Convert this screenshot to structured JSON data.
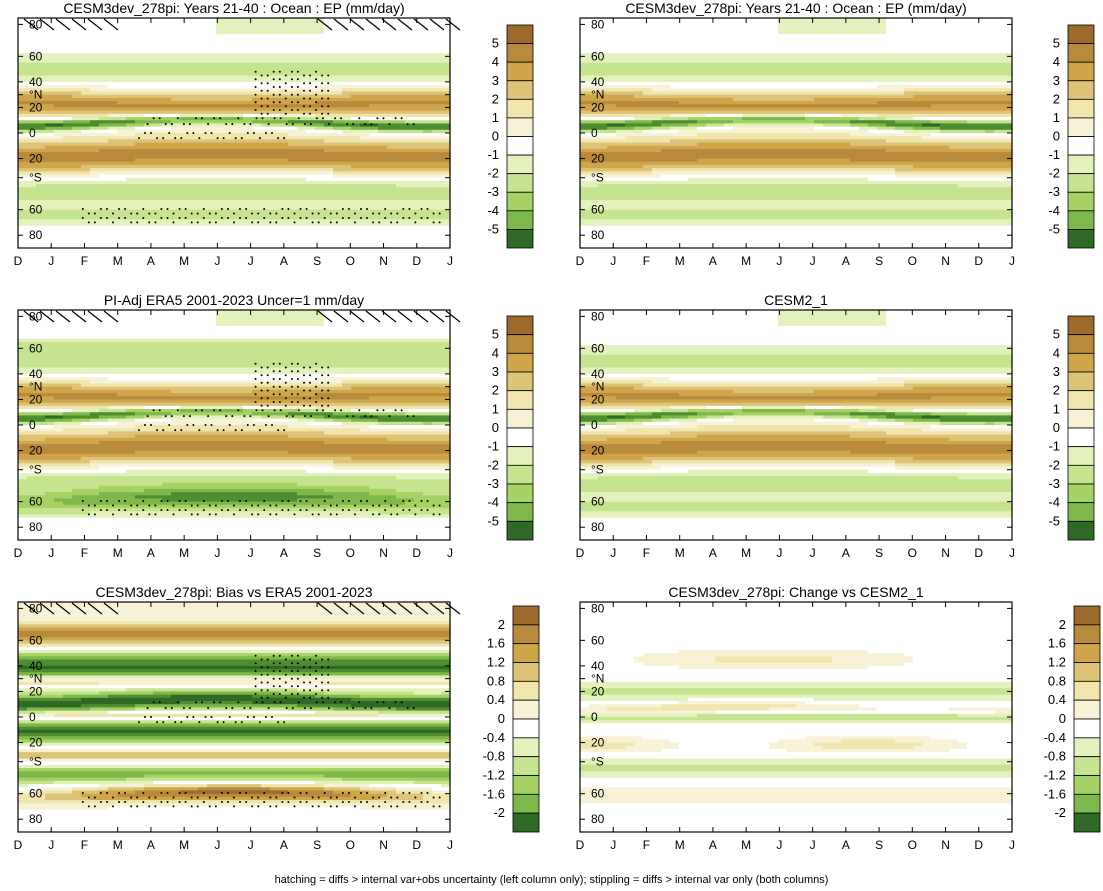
{
  "figure": {
    "footer": "hatching = diffs > internal var+obs uncertainty (left column only); stippling = diffs > internal var only (both columns)"
  },
  "colors": {
    "brown_dark": "#9c6a2c",
    "brown": "#b88a3c",
    "ochre": "#cfa54a",
    "tan": "#dcc377",
    "cream": "#efe5ad",
    "pale_cream": "#f7f2d6",
    "white": "#ffffff",
    "pale_green": "#e3f1bd",
    "light_green": "#c6e48f",
    "green": "#a6d265",
    "mid_green": "#7fb84a",
    "dark_green": "#4e8e30",
    "deep_green": "#2e6a25"
  },
  "chart_data": [
    {
      "id": "p1",
      "type": "heatmap",
      "title": "CESM3dev_278pi: Years 21-40 : Ocean : EP (mm/day)",
      "x_ticks": [
        "D",
        "J",
        "F",
        "M",
        "A",
        "M",
        "J",
        "J",
        "A",
        "S",
        "O",
        "N",
        "D",
        "J"
      ],
      "y_ticks": [
        "80",
        "60",
        "40",
        "°N",
        "20",
        "0",
        "20",
        "°S",
        "60",
        "80"
      ],
      "colorbar_labels": [
        "5",
        "4",
        "3",
        "2",
        "1",
        "0",
        "-1",
        "-2",
        "-3",
        "-4",
        "-5"
      ],
      "field": "ep",
      "hatching": true,
      "stippling": true
    },
    {
      "id": "p2",
      "type": "heatmap",
      "title": "CESM3dev_278pi: Years 21-40 : Ocean : EP (mm/day)",
      "x_ticks": [
        "D",
        "J",
        "F",
        "M",
        "A",
        "M",
        "J",
        "J",
        "A",
        "S",
        "O",
        "N",
        "D",
        "J"
      ],
      "y_ticks": [
        "80",
        "60",
        "40",
        "°N",
        "20",
        "0",
        "20",
        "°S",
        "60",
        "80"
      ],
      "colorbar_labels": [
        "5",
        "4",
        "3",
        "2",
        "1",
        "0",
        "-1",
        "-2",
        "-3",
        "-4",
        "-5"
      ],
      "field": "ep",
      "hatching": false,
      "stippling": false
    },
    {
      "id": "p3",
      "type": "heatmap",
      "title": "PI-Adj ERA5 2001-2023 Uncer=1 mm/day",
      "x_ticks": [
        "D",
        "J",
        "F",
        "M",
        "A",
        "M",
        "J",
        "J",
        "A",
        "S",
        "O",
        "N",
        "D",
        "J"
      ],
      "y_ticks": [
        "80",
        "60",
        "40",
        "°N",
        "20",
        "0",
        "20",
        "°S",
        "60",
        "80"
      ],
      "colorbar_labels": [
        "5",
        "4",
        "3",
        "2",
        "1",
        "0",
        "-1",
        "-2",
        "-3",
        "-4",
        "-5"
      ],
      "field": "ep_obs",
      "hatching": true,
      "stippling": true
    },
    {
      "id": "p4",
      "type": "heatmap",
      "title": "CESM2_1",
      "x_ticks": [
        "D",
        "J",
        "F",
        "M",
        "A",
        "M",
        "J",
        "J",
        "A",
        "S",
        "O",
        "N",
        "D",
        "J"
      ],
      "y_ticks": [
        "80",
        "60",
        "40",
        "°N",
        "20",
        "0",
        "20",
        "°S",
        "60",
        "80"
      ],
      "colorbar_labels": [
        "5",
        "4",
        "3",
        "2",
        "1",
        "0",
        "-1",
        "-2",
        "-3",
        "-4",
        "-5"
      ],
      "field": "ep",
      "hatching": false,
      "stippling": false
    },
    {
      "id": "p5",
      "type": "heatmap",
      "title": "CESM3dev_278pi: Bias vs ERA5 2001-2023",
      "x_ticks": [
        "D",
        "J",
        "F",
        "M",
        "A",
        "M",
        "J",
        "J",
        "A",
        "S",
        "O",
        "N",
        "D",
        "J"
      ],
      "y_ticks": [
        "80",
        "60",
        "40",
        "°N",
        "20",
        "0",
        "20",
        "°S",
        "60",
        "80"
      ],
      "colorbar_labels": [
        "2",
        "1.6",
        "1.2",
        "0.8",
        "0.4",
        "0",
        "-0.4",
        "-0.8",
        "-1.2",
        "-1.6",
        "-2"
      ],
      "field": "bias",
      "hatching": true,
      "stippling": true
    },
    {
      "id": "p6",
      "type": "heatmap",
      "title": "CESM3dev_278pi: Change vs CESM2_1",
      "x_ticks": [
        "D",
        "J",
        "F",
        "M",
        "A",
        "M",
        "J",
        "J",
        "A",
        "S",
        "O",
        "N",
        "D",
        "J"
      ],
      "y_ticks": [
        "80",
        "60",
        "40",
        "°N",
        "20",
        "0",
        "20",
        "°S",
        "60",
        "80"
      ],
      "colorbar_labels": [
        "2",
        "1.6",
        "1.2",
        "0.8",
        "0.4",
        "0",
        "-0.4",
        "-0.8",
        "-1.2",
        "-1.6",
        "-2"
      ],
      "field": "change",
      "hatching": false,
      "stippling": false
    }
  ]
}
